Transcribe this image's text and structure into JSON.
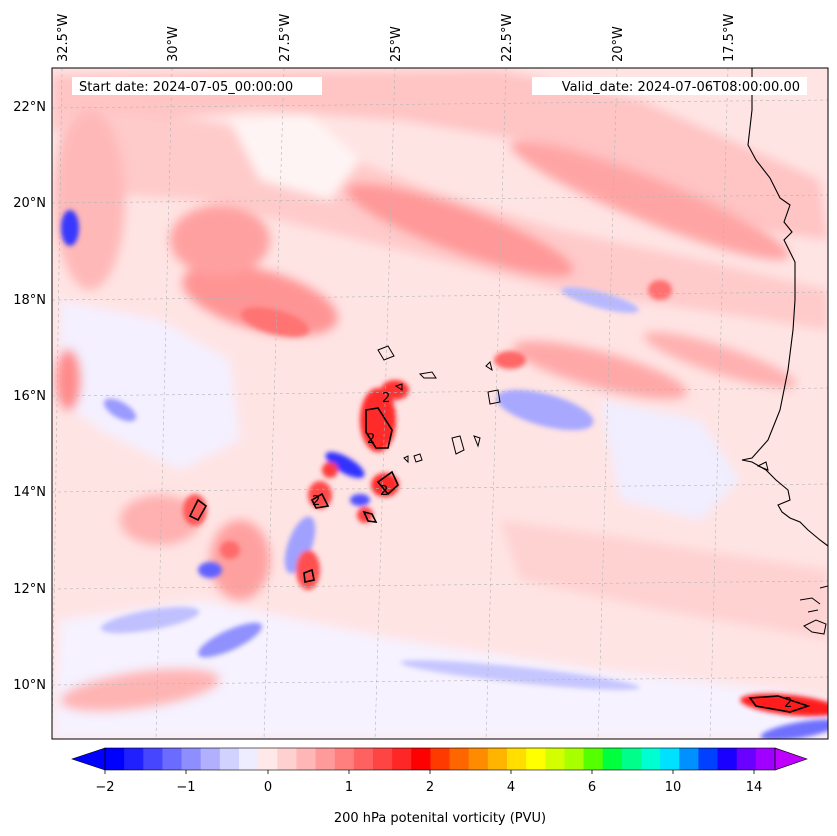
{
  "header": {
    "start_date": "Start date: 2024-07-05_00:00:00",
    "valid_date": "Valid_date: 2024-07-06T08:00:00.00"
  },
  "axes": {
    "lon_labels": [
      "32.5°W",
      "30°W",
      "27.5°W",
      "25°W",
      "22.5°W",
      "20°W",
      "17.5°W"
    ],
    "lat_labels": [
      "22°N",
      "20°N",
      "18°N",
      "16°N",
      "14°N",
      "12°N",
      "10°N"
    ]
  },
  "colorbar": {
    "tick_labels": [
      "−2",
      "−1",
      "0",
      "1",
      "2",
      "4",
      "6",
      "10",
      "14"
    ],
    "label": "200 hPa potenital vorticity (PVU)",
    "colors": [
      "#0000ff",
      "#2020ff",
      "#4646ff",
      "#6b6bff",
      "#8e8eff",
      "#b0b0ff",
      "#d2d2ff",
      "#ededff",
      "#ffe8e8",
      "#ffd0d0",
      "#ffb6b6",
      "#ff9a9a",
      "#ff7e7e",
      "#ff6161",
      "#ff4444",
      "#ff2626",
      "#ff0000",
      "#ff3a00",
      "#ff6600",
      "#ff8c00",
      "#ffb400",
      "#ffde00",
      "#ffff00",
      "#d4ff00",
      "#a8ff00",
      "#55ff00",
      "#00ff3c",
      "#00ff8a",
      "#00ffd0",
      "#00e0ff",
      "#0090ff",
      "#0040ff",
      "#1a00ff",
      "#6a00ff",
      "#a000ff"
    ]
  },
  "contour_label": "2",
  "map_colors": {
    "ocean_base": "#ffe4e4",
    "coast": "#000000",
    "grid": "#b4b4b4"
  }
}
